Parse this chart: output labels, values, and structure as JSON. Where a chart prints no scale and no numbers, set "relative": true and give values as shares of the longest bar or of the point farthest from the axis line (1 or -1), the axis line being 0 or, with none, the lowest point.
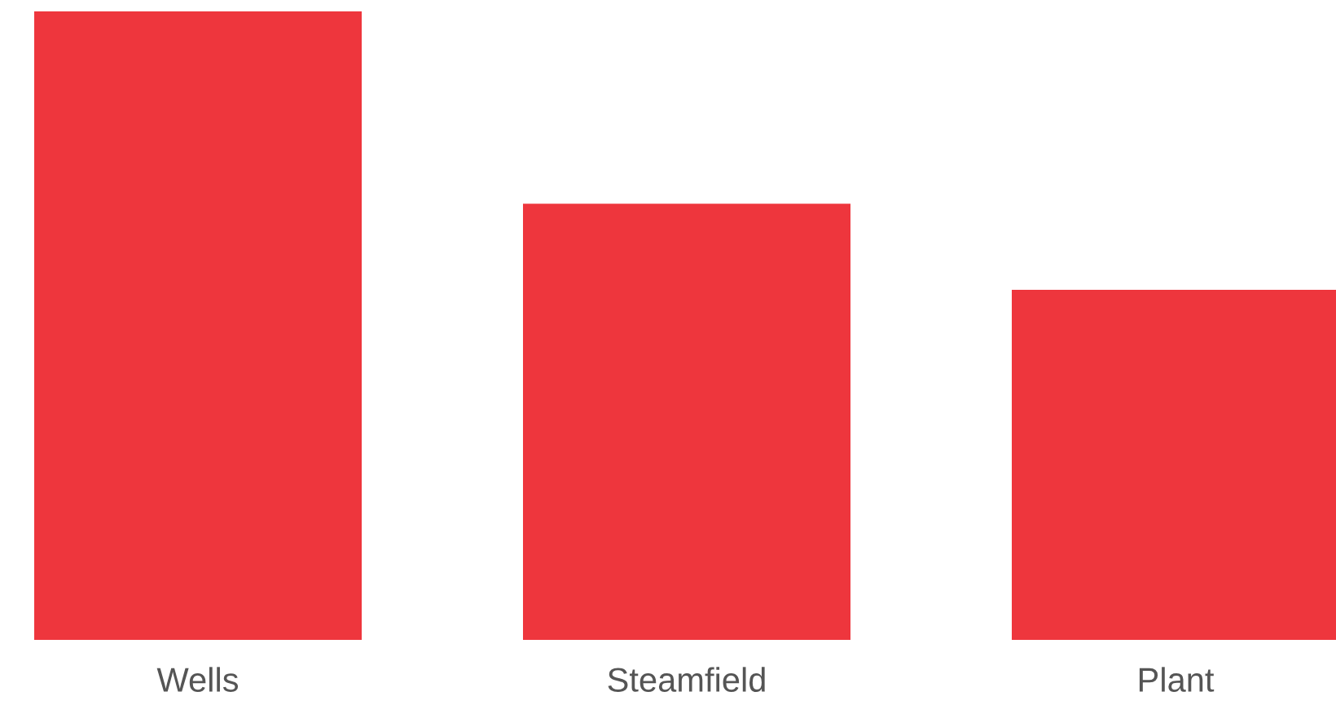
{
  "chart_data": {
    "type": "bar",
    "categories": [
      "Wells",
      "Steamfield",
      "Plant"
    ],
    "values": [
      1,
      0.694,
      0.557
    ],
    "color": "#ee363d",
    "relative": true,
    "grid": false,
    "legend": false
  }
}
